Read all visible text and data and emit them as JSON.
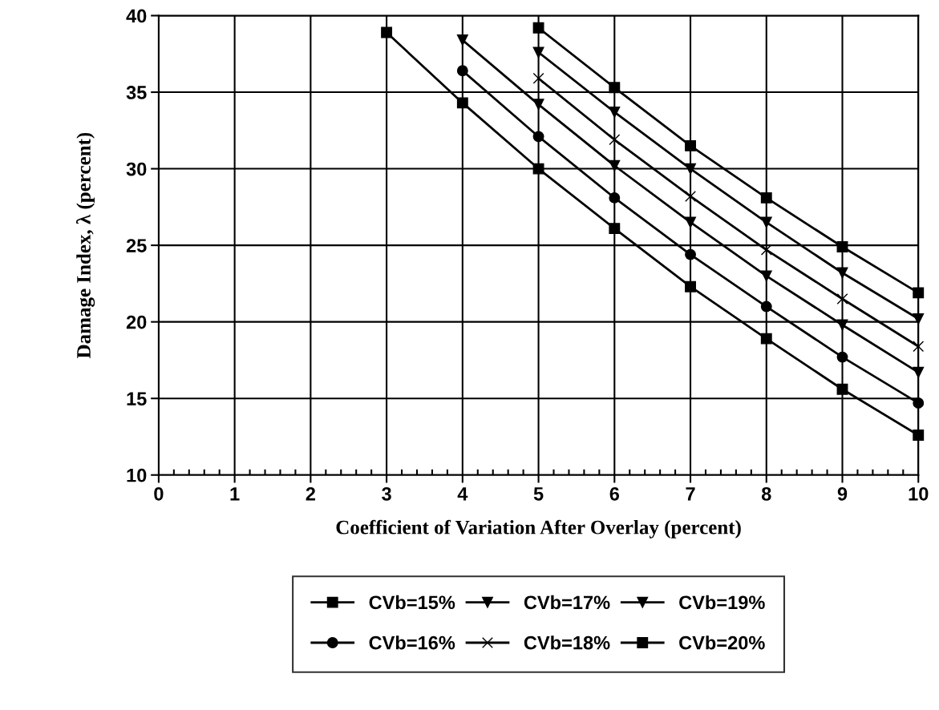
{
  "chart_data": {
    "type": "line",
    "xlabel": "Coefficient of Variation After Overlay (percent)",
    "ylabel": "Damage Index, λ (percent)",
    "xlim": [
      0,
      10
    ],
    "xticks": [
      0,
      1,
      2,
      3,
      4,
      5,
      6,
      7,
      8,
      9,
      10
    ],
    "ylim": [
      10,
      40
    ],
    "yticks": [
      10,
      15,
      20,
      25,
      30,
      35,
      40
    ],
    "grid": true,
    "legend": "bottom",
    "line_style": "solid",
    "series": [
      {
        "name": "CVb=15%",
        "color": "#000000",
        "marker": "square",
        "x": [
          3,
          4,
          5,
          6,
          7,
          8,
          9,
          10
        ],
        "values": [
          38.9,
          34.3,
          30.0,
          26.1,
          22.3,
          18.9,
          15.6,
          12.6
        ]
      },
      {
        "name": "CVb=16%",
        "color": "#000000",
        "marker": "circle",
        "x": [
          4,
          5,
          6,
          7,
          8,
          9,
          10
        ],
        "values": [
          36.4,
          32.1,
          28.1,
          24.4,
          21.0,
          17.7,
          14.7
        ]
      },
      {
        "name": "CVb=17%",
        "color": "#000000",
        "marker": "triangle",
        "x": [
          4,
          5,
          6,
          7,
          8,
          9,
          10
        ],
        "values": [
          38.4,
          34.2,
          30.2,
          26.5,
          23.0,
          19.8,
          16.7
        ]
      },
      {
        "name": "CVb=18%",
        "color": "#000000",
        "marker": "cross",
        "x": [
          5,
          6,
          7,
          8,
          9,
          10
        ],
        "values": [
          35.9,
          31.9,
          28.2,
          24.7,
          21.5,
          18.4
        ]
      },
      {
        "name": "CVb=19%",
        "color": "#000000",
        "marker": "triangle",
        "x": [
          5,
          6,
          7,
          8,
          9,
          10
        ],
        "values": [
          37.6,
          33.7,
          30.0,
          26.5,
          23.2,
          20.2
        ]
      },
      {
        "name": "CVb=20%",
        "color": "#000000",
        "marker": "square",
        "x": [
          5,
          6,
          7,
          8,
          9,
          10
        ],
        "values": [
          39.2,
          35.3,
          31.5,
          28.1,
          24.9,
          21.9
        ]
      }
    ]
  }
}
